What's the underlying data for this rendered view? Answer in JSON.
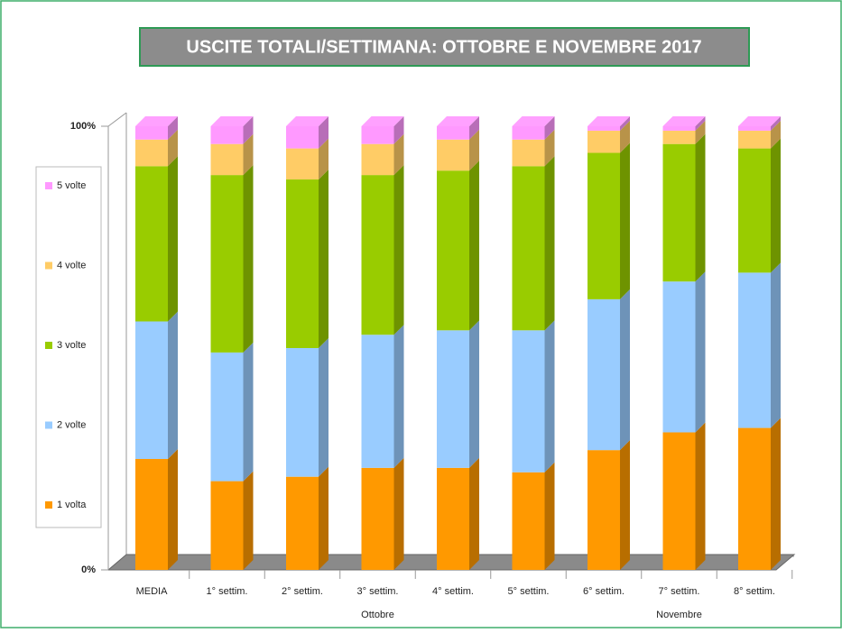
{
  "chart_data": {
    "type": "stacked_bar_3d",
    "title": "USCITE TOTALI/SETTIMANA: OTTOBRE E NOVEMBRE 2017",
    "categories": [
      "MEDIA",
      "1° settim.",
      "2° settim.",
      "3° settim.",
      "4° settim.",
      "5° settim.",
      "6° settim.",
      "7° settim.",
      "8° settim."
    ],
    "groups": [
      {
        "name": "Ottobre",
        "span": [
          1,
          5
        ]
      },
      {
        "name": "Novembre",
        "span": [
          6,
          8
        ]
      }
    ],
    "series": [
      {
        "name": "1 volta",
        "color": "#ff9900",
        "values": [
          25,
          20,
          21,
          23,
          23,
          22,
          27,
          31,
          32
        ]
      },
      {
        "name": "2 volte",
        "color": "#99ccff",
        "values": [
          31,
          29,
          29,
          30,
          31,
          32,
          34,
          34,
          35
        ]
      },
      {
        "name": "3 volte",
        "color": "#99cc00",
        "values": [
          35,
          40,
          38,
          36,
          36,
          37,
          33,
          31,
          28
        ]
      },
      {
        "name": "4 volte",
        "color": "#ffcc66",
        "values": [
          6,
          7,
          7,
          7,
          7,
          6,
          5,
          3,
          4
        ]
      },
      {
        "name": "5 volte",
        "color": "#ff99ff",
        "values": [
          3,
          4,
          5,
          4,
          3,
          3,
          1,
          1,
          1
        ]
      }
    ],
    "ylim": [
      0,
      100
    ],
    "yticks": [
      {
        "value": 0,
        "label": "0%"
      },
      {
        "value": 100,
        "label": "100%"
      }
    ],
    "legend": "left"
  }
}
